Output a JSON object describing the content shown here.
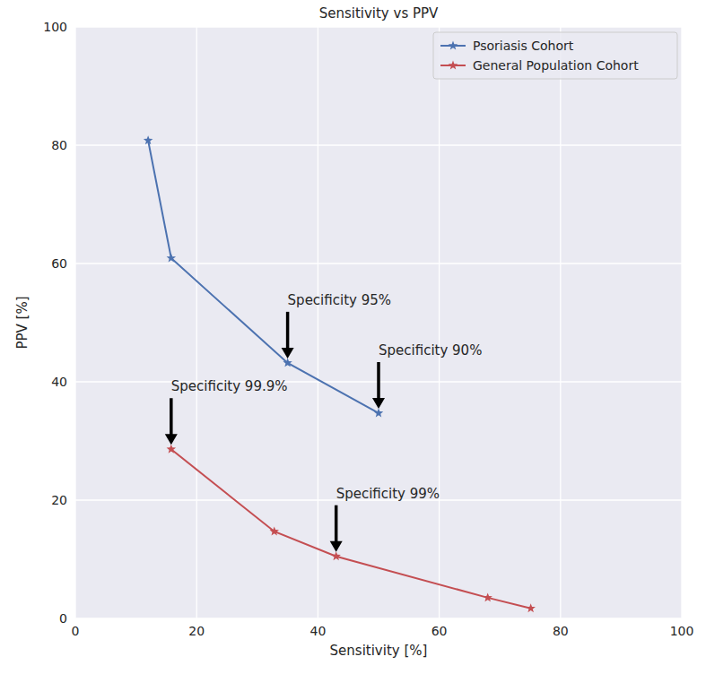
{
  "chart_data": {
    "type": "line",
    "title": "Sensitivity vs PPV",
    "x_label": "Sensitivity [%]",
    "y_label": "PPV [%]",
    "xlim": [
      0,
      100
    ],
    "ylim": [
      0,
      100
    ],
    "xticks": [
      0,
      20,
      40,
      60,
      80,
      100
    ],
    "yticks": [
      0,
      20,
      40,
      60,
      80,
      100
    ],
    "grid": true,
    "legend": "upper right",
    "series": [
      {
        "name": "Psoriasis Cohort",
        "color": "#4c72b0",
        "marker": "star",
        "x": [
          12,
          15.8,
          35,
          50
        ],
        "values": [
          80.8,
          60.9,
          43.2,
          34.7
        ]
      },
      {
        "name": "General Population Cohort",
        "color": "#c44e52",
        "marker": "star",
        "x": [
          15.8,
          32.8,
          43,
          68,
          75.1
        ],
        "values": [
          28.6,
          14.7,
          10.5,
          3.5,
          1.7
        ]
      }
    ],
    "annotations": [
      {
        "text": "Specificity 95%",
        "x": 35,
        "y": 43.2
      },
      {
        "text": "Specificity 90%",
        "x": 50,
        "y": 34.7
      },
      {
        "text": "Specificity 99.9%",
        "x": 15.8,
        "y": 28.6
      },
      {
        "text": "Specificity 99%",
        "x": 43,
        "y": 10.5
      }
    ]
  }
}
